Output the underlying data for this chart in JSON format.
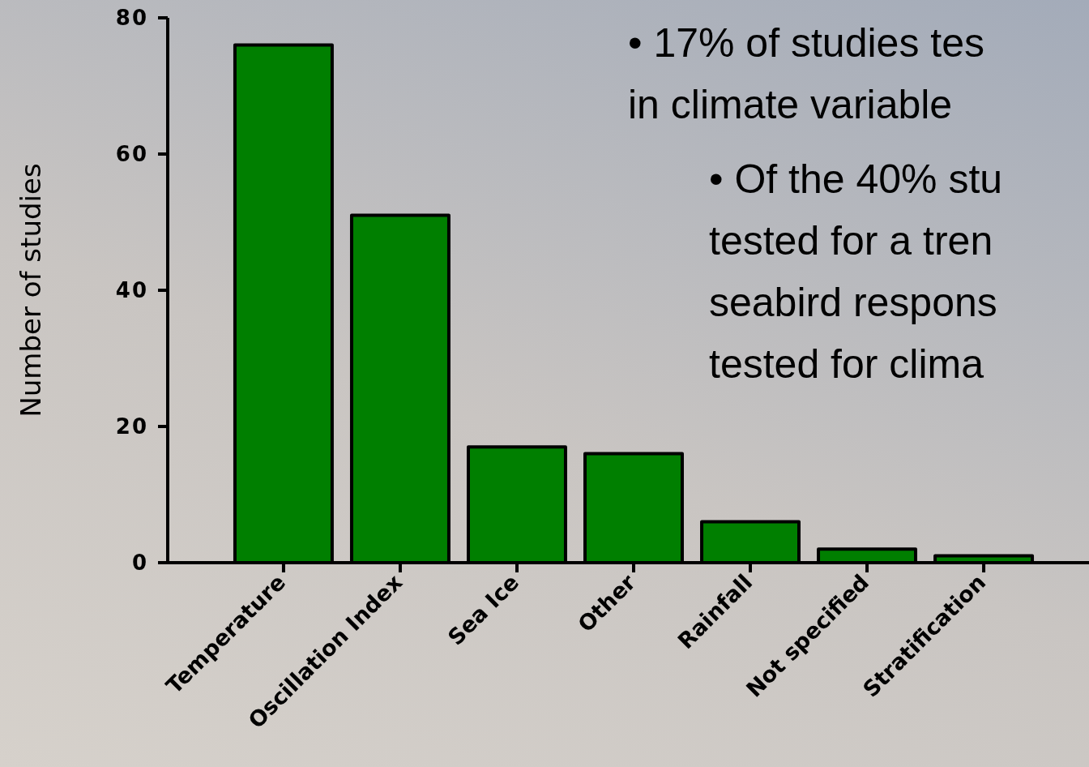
{
  "chart_data": {
    "type": "bar",
    "ylabel": "Number of studies",
    "categories": [
      "Temperature",
      "Oscillation Index",
      "Sea Ice",
      "Other",
      "Rainfall",
      "Not specified",
      "Stratification"
    ],
    "values": [
      76,
      51,
      17,
      16,
      6,
      2,
      1
    ],
    "color": "#007f00",
    "ylim": [
      0,
      80
    ],
    "yticks": [
      0,
      20,
      40,
      60,
      80
    ],
    "annotations": [
      "• 17% of studies tes\nin climate variable",
      "• Of the 40% stu\ntested for a tren\nseabird respons\ntested for clima"
    ]
  }
}
